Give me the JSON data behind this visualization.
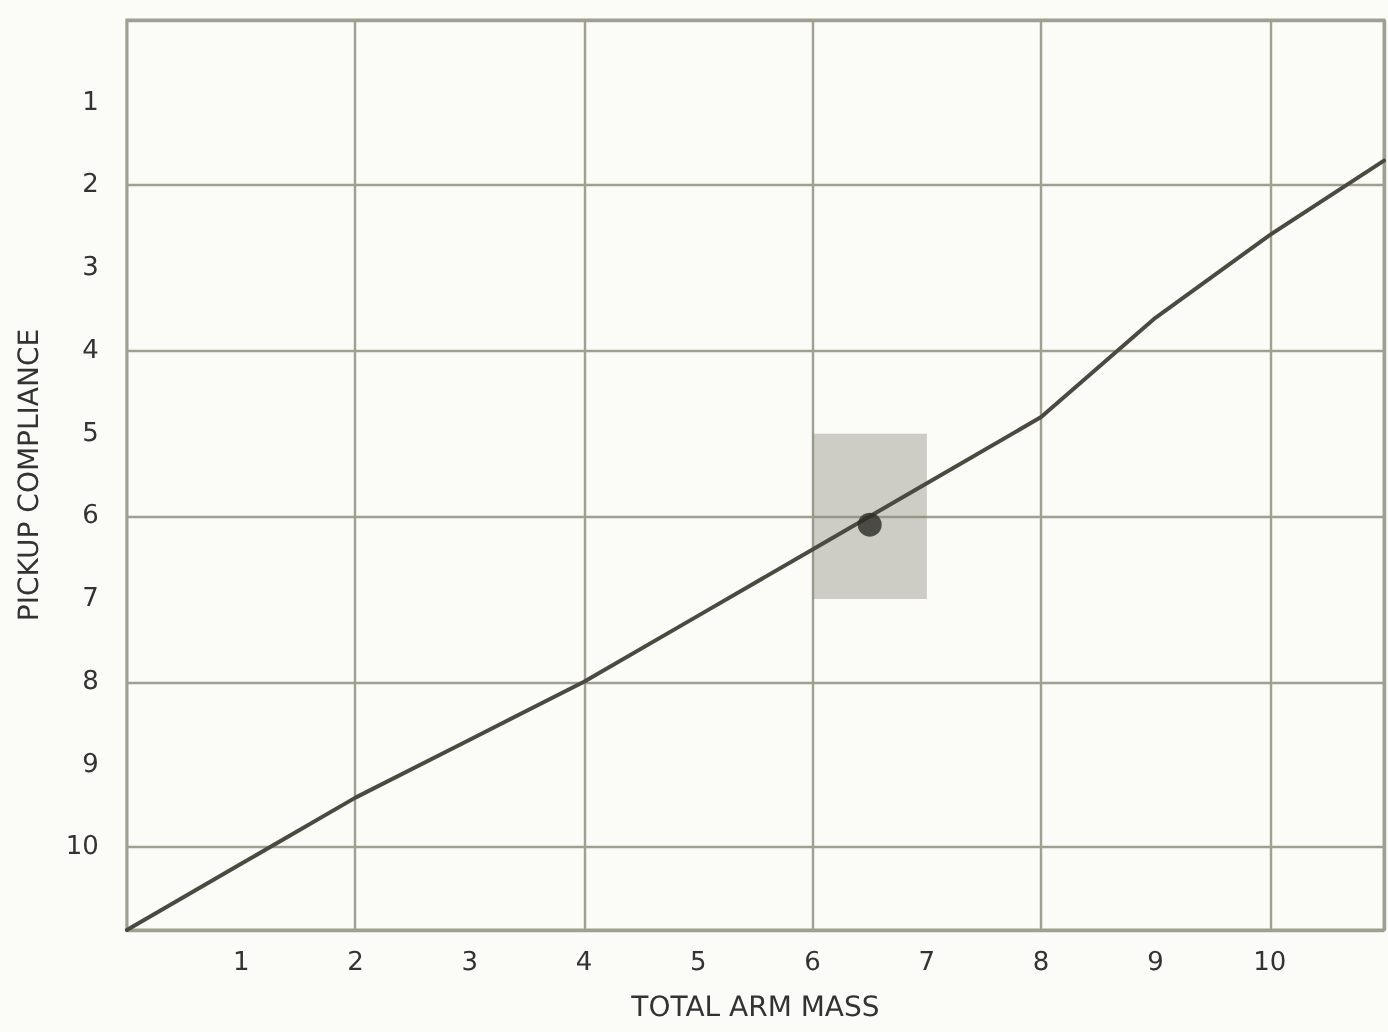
{
  "chart_data": {
    "type": "line",
    "xlabel": "TOTAL ARM MASS",
    "ylabel": "PICKUP COMPLIANCE",
    "xlim": [
      0,
      11
    ],
    "xticks": [
      1,
      2,
      3,
      4,
      5,
      6,
      7,
      8,
      9,
      10
    ],
    "ylim": [
      11,
      0
    ],
    "yticks": [
      1,
      2,
      3,
      4,
      5,
      6,
      7,
      8,
      9,
      10
    ],
    "grid": true,
    "marker": "none",
    "line_style": "solid",
    "series": [
      {
        "color": "#4a4a40",
        "x": [
          0,
          1,
          2,
          3,
          4,
          5,
          6,
          7,
          8,
          9,
          10,
          11
        ],
        "values": [
          11,
          10.2,
          9.4,
          8.7,
          8,
          7.2,
          6.4,
          5.6,
          4.8,
          3.6,
          2.6,
          1.7
        ]
      },
      {
        "type": "bar",
        "color": "#8a8a7c",
        "x": [
          6.5
        ],
        "base": [
          5
        ],
        "values": [
          2
        ]
      },
      {
        "type": "scatter",
        "marker": "circle",
        "color": "#2a2a24",
        "x": [
          6.5
        ],
        "values": [
          6.1
        ]
      }
    ]
  }
}
